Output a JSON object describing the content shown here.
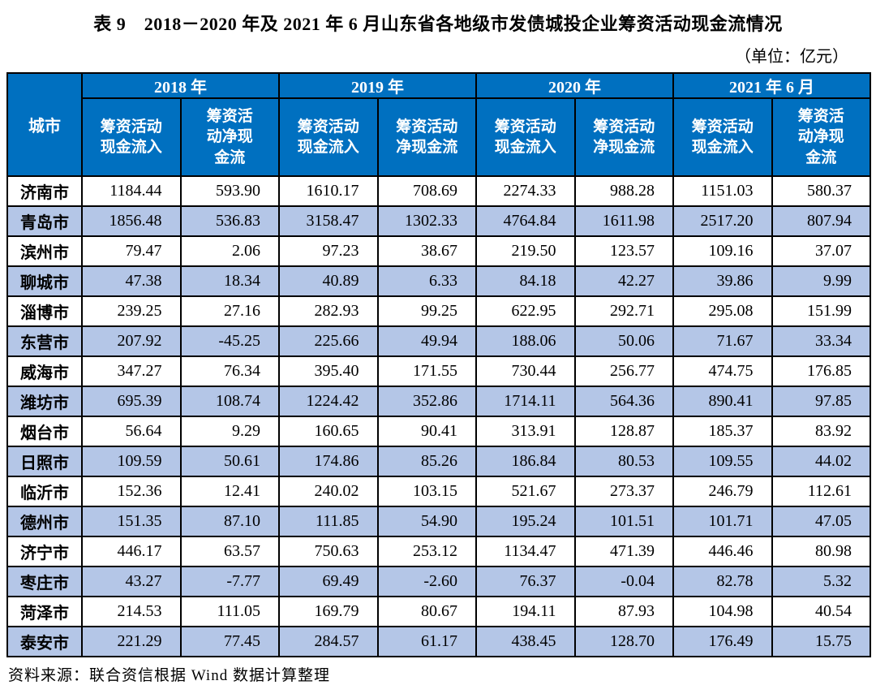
{
  "title": "表 9　2018－2020 年及 2021 年 6 月山东省各地级市发债城投企业筹资活动现金流情况",
  "unit_label": "（单位：亿元）",
  "source": "资料来源：联合资信根据 Wind 数据计算整理",
  "colors": {
    "header_bg": "#0070C0",
    "stripe_bg": "#B4C6E7",
    "header_text": "#FFFFFF",
    "border": "#000000"
  },
  "table": {
    "city_header": "城市",
    "year_groups": [
      {
        "label": "2018 年",
        "sub": [
          "筹资活动\n现金流入",
          "筹资活\n动净现\n金流"
        ]
      },
      {
        "label": "2019 年",
        "sub": [
          "筹资活动\n现金流入",
          "筹资活动\n净现金流"
        ]
      },
      {
        "label": "2020 年",
        "sub": [
          "筹资活动\n现金流入",
          "筹资活动\n净现金流"
        ]
      },
      {
        "label": "2021 年 6 月",
        "sub": [
          "筹资活动\n现金流入",
          "筹资活\n动净现\n金流"
        ]
      }
    ],
    "rows": [
      {
        "city": "济南市",
        "values": [
          "1184.44",
          "593.90",
          "1610.17",
          "708.69",
          "2274.33",
          "988.28",
          "1151.03",
          "580.37"
        ]
      },
      {
        "city": "青岛市",
        "values": [
          "1856.48",
          "536.83",
          "3158.47",
          "1302.33",
          "4764.84",
          "1611.98",
          "2517.20",
          "807.94"
        ]
      },
      {
        "city": "滨州市",
        "values": [
          "79.47",
          "2.06",
          "97.23",
          "38.67",
          "219.50",
          "123.57",
          "109.16",
          "37.07"
        ]
      },
      {
        "city": "聊城市",
        "values": [
          "47.38",
          "18.34",
          "40.89",
          "6.33",
          "84.18",
          "42.27",
          "39.86",
          "9.99"
        ]
      },
      {
        "city": "淄博市",
        "values": [
          "239.25",
          "27.16",
          "282.93",
          "99.25",
          "622.95",
          "292.71",
          "295.08",
          "151.99"
        ]
      },
      {
        "city": "东营市",
        "values": [
          "207.92",
          "-45.25",
          "225.66",
          "49.94",
          "188.06",
          "50.06",
          "71.67",
          "33.34"
        ]
      },
      {
        "city": "威海市",
        "values": [
          "347.27",
          "76.34",
          "395.40",
          "171.55",
          "730.44",
          "256.77",
          "474.75",
          "176.85"
        ]
      },
      {
        "city": "潍坊市",
        "values": [
          "695.39",
          "108.74",
          "1224.42",
          "352.86",
          "1714.11",
          "564.36",
          "890.41",
          "97.85"
        ]
      },
      {
        "city": "烟台市",
        "values": [
          "56.64",
          "9.29",
          "160.65",
          "90.41",
          "313.91",
          "128.87",
          "185.37",
          "83.92"
        ]
      },
      {
        "city": "日照市",
        "values": [
          "109.59",
          "50.61",
          "174.86",
          "85.26",
          "186.84",
          "80.53",
          "109.55",
          "44.02"
        ]
      },
      {
        "city": "临沂市",
        "values": [
          "152.36",
          "12.41",
          "240.02",
          "103.15",
          "521.67",
          "273.37",
          "246.79",
          "112.61"
        ]
      },
      {
        "city": "德州市",
        "values": [
          "151.35",
          "87.10",
          "111.85",
          "54.90",
          "195.24",
          "101.51",
          "101.71",
          "47.05"
        ]
      },
      {
        "city": "济宁市",
        "values": [
          "446.17",
          "63.57",
          "750.63",
          "253.12",
          "1134.47",
          "471.39",
          "446.46",
          "80.98"
        ]
      },
      {
        "city": "枣庄市",
        "values": [
          "43.27",
          "-7.77",
          "69.49",
          "-2.60",
          "76.37",
          "-0.04",
          "82.78",
          "5.32"
        ]
      },
      {
        "city": "菏泽市",
        "values": [
          "214.53",
          "111.05",
          "169.79",
          "80.67",
          "194.11",
          "87.93",
          "104.98",
          "40.54"
        ]
      },
      {
        "city": "泰安市",
        "values": [
          "221.29",
          "77.45",
          "284.57",
          "61.17",
          "438.45",
          "128.70",
          "176.49",
          "15.75"
        ]
      }
    ]
  },
  "chart_data": {
    "type": "table",
    "title": "表 9　2018－2020 年及 2021 年 6 月山东省各地级市发债城投企业筹资活动现金流情况",
    "unit": "亿元",
    "columns": [
      "城市",
      "2018年 筹资活动现金流入",
      "2018年 筹资活动净现金流",
      "2019年 筹资活动现金流入",
      "2019年 筹资活动净现金流",
      "2020年 筹资活动现金流入",
      "2020年 筹资活动净现金流",
      "2021年6月 筹资活动现金流入",
      "2021年6月 筹资活动净现金流"
    ],
    "rows": [
      [
        "济南市",
        1184.44,
        593.9,
        1610.17,
        708.69,
        2274.33,
        988.28,
        1151.03,
        580.37
      ],
      [
        "青岛市",
        1856.48,
        536.83,
        3158.47,
        1302.33,
        4764.84,
        1611.98,
        2517.2,
        807.94
      ],
      [
        "滨州市",
        79.47,
        2.06,
        97.23,
        38.67,
        219.5,
        123.57,
        109.16,
        37.07
      ],
      [
        "聊城市",
        47.38,
        18.34,
        40.89,
        6.33,
        84.18,
        42.27,
        39.86,
        9.99
      ],
      [
        "淄博市",
        239.25,
        27.16,
        282.93,
        99.25,
        622.95,
        292.71,
        295.08,
        151.99
      ],
      [
        "东营市",
        207.92,
        -45.25,
        225.66,
        49.94,
        188.06,
        50.06,
        71.67,
        33.34
      ],
      [
        "威海市",
        347.27,
        76.34,
        395.4,
        171.55,
        730.44,
        256.77,
        474.75,
        176.85
      ],
      [
        "潍坊市",
        695.39,
        108.74,
        1224.42,
        352.86,
        1714.11,
        564.36,
        890.41,
        97.85
      ],
      [
        "烟台市",
        56.64,
        9.29,
        160.65,
        90.41,
        313.91,
        128.87,
        185.37,
        83.92
      ],
      [
        "日照市",
        109.59,
        50.61,
        174.86,
        85.26,
        186.84,
        80.53,
        109.55,
        44.02
      ],
      [
        "临沂市",
        152.36,
        12.41,
        240.02,
        103.15,
        521.67,
        273.37,
        246.79,
        112.61
      ],
      [
        "德州市",
        151.35,
        87.1,
        111.85,
        54.9,
        195.24,
        101.51,
        101.71,
        47.05
      ],
      [
        "济宁市",
        446.17,
        63.57,
        750.63,
        253.12,
        1134.47,
        471.39,
        446.46,
        80.98
      ],
      [
        "枣庄市",
        43.27,
        -7.77,
        69.49,
        -2.6,
        76.37,
        -0.04,
        82.78,
        5.32
      ],
      [
        "菏泽市",
        214.53,
        111.05,
        169.79,
        80.67,
        194.11,
        87.93,
        104.98,
        40.54
      ],
      [
        "泰安市",
        221.29,
        77.45,
        284.57,
        61.17,
        438.45,
        128.7,
        176.49,
        15.75
      ]
    ]
  }
}
